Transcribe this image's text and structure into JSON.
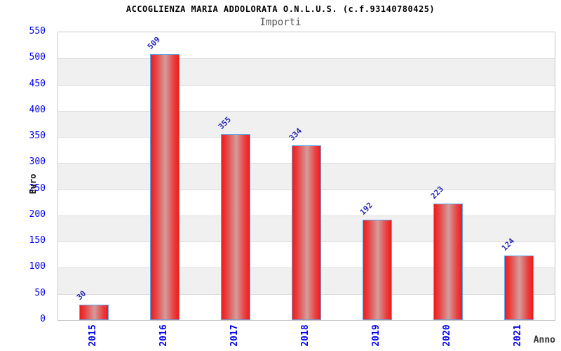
{
  "chart_data": {
    "type": "bar",
    "title": "ACCOGLIENZA MARIA ADDOLORATA O.N.L.U.S. (c.f.93140780425)",
    "subtitle": "Importi",
    "xlabel": "Anno",
    "ylabel": "Euro",
    "categories": [
      "2015",
      "2016",
      "2017",
      "2018",
      "2019",
      "2020",
      "2021"
    ],
    "values": [
      30,
      509,
      355,
      334,
      192,
      223,
      124
    ],
    "bar_labels": [
      "30",
      "509",
      "355",
      "334",
      "192",
      "223",
      "124"
    ],
    "ylim": [
      0,
      550
    ],
    "ytick_step": 50,
    "yticks": [
      0,
      50,
      100,
      150,
      200,
      250,
      300,
      350,
      400,
      450,
      500,
      550
    ],
    "grid": "horizontal-bands",
    "legend": "none",
    "colors": {
      "bar_edge": "#ee1c1c",
      "bar_center": "#d49c9c",
      "bar_border": "#5fa8e8",
      "axis_tick_label": "#0000f0",
      "value_label": "#2b2bb4",
      "band_gray": "#f0f0f0",
      "gridline": "#dcdcdc",
      "plot_border": "#c8c8c8",
      "title": "#000000",
      "subtitle": "#555555"
    }
  }
}
